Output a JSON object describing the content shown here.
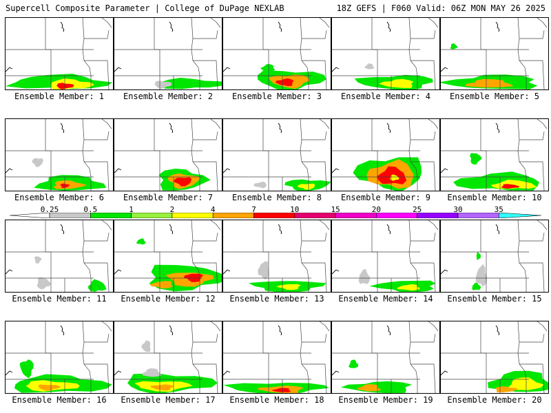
{
  "header": {
    "title": "Supercell Composite Parameter | College of DuPage NEXLAB",
    "run_info": "18Z GEFS | F060 Valid: 06Z MON MAY 26 2025"
  },
  "label_prefix": "Ensemble Member: ",
  "members": [
    {
      "label": "Ensemble Member: 1",
      "blobs": [
        [
          0.5,
          0.9,
          0.45,
          0.1,
          "#00e600"
        ],
        [
          0.6,
          0.93,
          0.2,
          0.07,
          "#ffff00"
        ],
        [
          0.55,
          0.95,
          0.08,
          0.04,
          "#ff0000"
        ]
      ]
    },
    {
      "label": "Ensemble Member: 2",
      "blobs": [
        [
          0.7,
          0.92,
          0.3,
          0.07,
          "#00e600"
        ],
        [
          0.45,
          0.93,
          0.08,
          0.05,
          "#c8c8c8"
        ]
      ]
    },
    {
      "label": "Ensemble Member: 3",
      "blobs": [
        [
          0.62,
          0.86,
          0.32,
          0.13,
          "#00e600"
        ],
        [
          0.62,
          0.88,
          0.18,
          0.09,
          "#ffa500"
        ],
        [
          0.58,
          0.9,
          0.08,
          0.05,
          "#ff0000"
        ],
        [
          0.42,
          0.7,
          0.06,
          0.05,
          "#00e600"
        ]
      ]
    },
    {
      "label": "Ensemble Member: 4",
      "blobs": [
        [
          0.6,
          0.9,
          0.35,
          0.1,
          "#00e600"
        ],
        [
          0.62,
          0.92,
          0.15,
          0.06,
          "#ffff00"
        ],
        [
          0.35,
          0.68,
          0.04,
          0.04,
          "#c8c8c8"
        ]
      ]
    },
    {
      "label": "Ensemble Member: 5",
      "blobs": [
        [
          0.5,
          0.9,
          0.42,
          0.1,
          "#00e600"
        ],
        [
          0.45,
          0.92,
          0.2,
          0.06,
          "#ffa500"
        ],
        [
          0.12,
          0.4,
          0.03,
          0.04,
          "#00e600"
        ]
      ]
    },
    {
      "label": "Ensemble Member: 6",
      "blobs": [
        [
          0.6,
          0.9,
          0.3,
          0.11,
          "#00e600"
        ],
        [
          0.58,
          0.92,
          0.14,
          0.06,
          "#ffa500"
        ],
        [
          0.55,
          0.93,
          0.04,
          0.03,
          "#ff0000"
        ],
        [
          0.3,
          0.6,
          0.05,
          0.06,
          "#c8c8c8"
        ]
      ]
    },
    {
      "label": "Ensemble Member: 7",
      "blobs": [
        [
          0.62,
          0.85,
          0.22,
          0.15,
          "#00e600"
        ],
        [
          0.64,
          0.86,
          0.14,
          0.1,
          "#ffa500"
        ],
        [
          0.64,
          0.87,
          0.08,
          0.06,
          "#ff0000"
        ]
      ]
    },
    {
      "label": "Ensemble Member: 8",
      "blobs": [
        [
          0.78,
          0.92,
          0.2,
          0.08,
          "#00e600"
        ],
        [
          0.78,
          0.94,
          0.08,
          0.04,
          "#ffff00"
        ],
        [
          0.35,
          0.92,
          0.06,
          0.04,
          "#c8c8c8"
        ]
      ]
    },
    {
      "label": "Ensemble Member: 9",
      "blobs": [
        [
          0.55,
          0.75,
          0.32,
          0.22,
          "#00e600"
        ],
        [
          0.56,
          0.78,
          0.22,
          0.18,
          "#ffa500"
        ],
        [
          0.56,
          0.8,
          0.13,
          0.12,
          "#ff0000"
        ],
        [
          0.58,
          0.82,
          0.04,
          0.04,
          "#ffff00"
        ]
      ]
    },
    {
      "label": "Ensemble Member: 10",
      "blobs": [
        [
          0.55,
          0.88,
          0.4,
          0.12,
          "#00e600"
        ],
        [
          0.68,
          0.92,
          0.2,
          0.06,
          "#ffff00"
        ],
        [
          0.64,
          0.94,
          0.08,
          0.03,
          "#ff0000"
        ],
        [
          0.32,
          0.55,
          0.05,
          0.08,
          "#00e600"
        ]
      ]
    },
    {
      "label": "Ensemble Member: 11",
      "blobs": [
        [
          0.85,
          0.92,
          0.08,
          0.08,
          "#00e600"
        ],
        [
          0.35,
          0.88,
          0.06,
          0.08,
          "#c8c8c8"
        ],
        [
          0.3,
          0.55,
          0.03,
          0.05,
          "#c8c8c8"
        ]
      ]
    },
    {
      "label": "Ensemble Member: 12",
      "blobs": [
        [
          0.65,
          0.8,
          0.35,
          0.18,
          "#00e600"
        ],
        [
          0.7,
          0.82,
          0.2,
          0.1,
          "#ffa500"
        ],
        [
          0.74,
          0.8,
          0.08,
          0.06,
          "#ff0000"
        ],
        [
          0.45,
          0.9,
          0.1,
          0.05,
          "#ffa500"
        ],
        [
          0.25,
          0.3,
          0.04,
          0.04,
          "#00e600"
        ]
      ]
    },
    {
      "label": "Ensemble Member: 13",
      "blobs": [
        [
          0.6,
          0.92,
          0.32,
          0.08,
          "#00e600"
        ],
        [
          0.62,
          0.93,
          0.1,
          0.04,
          "#ffff00"
        ],
        [
          0.38,
          0.7,
          0.05,
          0.12,
          "#c8c8c8"
        ]
      ]
    },
    {
      "label": "Ensemble Member: 14",
      "blobs": [
        [
          0.7,
          0.92,
          0.28,
          0.08,
          "#00e600"
        ],
        [
          0.72,
          0.94,
          0.1,
          0.04,
          "#ffff00"
        ],
        [
          0.3,
          0.8,
          0.05,
          0.1,
          "#c8c8c8"
        ]
      ]
    },
    {
      "label": "Ensemble Member: 15",
      "blobs": [
        [
          0.38,
          0.78,
          0.05,
          0.14,
          "#c8c8c8"
        ],
        [
          0.33,
          0.93,
          0.04,
          0.05,
          "#00e600"
        ],
        [
          0.35,
          0.5,
          0.02,
          0.05,
          "#00e600"
        ]
      ]
    },
    {
      "label": "Ensemble Member: 16",
      "blobs": [
        [
          0.5,
          0.88,
          0.45,
          0.12,
          "#00e600"
        ],
        [
          0.42,
          0.9,
          0.25,
          0.07,
          "#ffff00"
        ],
        [
          0.4,
          0.92,
          0.1,
          0.04,
          "#ffa500"
        ],
        [
          0.2,
          0.65,
          0.06,
          0.12,
          "#00e600"
        ]
      ]
    },
    {
      "label": "Ensemble Member: 17",
      "blobs": [
        [
          0.5,
          0.86,
          0.42,
          0.13,
          "#00e600"
        ],
        [
          0.45,
          0.9,
          0.25,
          0.07,
          "#ffff00"
        ],
        [
          0.45,
          0.92,
          0.1,
          0.04,
          "#ffa500"
        ],
        [
          0.3,
          0.35,
          0.04,
          0.08,
          "#c8c8c8"
        ],
        [
          0.35,
          0.72,
          0.08,
          0.06,
          "#c8c8c8"
        ]
      ]
    },
    {
      "label": "Ensemble Member: 18",
      "blobs": [
        [
          0.5,
          0.93,
          0.45,
          0.08,
          "#00e600"
        ],
        [
          0.55,
          0.95,
          0.2,
          0.05,
          "#ffa500"
        ],
        [
          0.55,
          0.96,
          0.08,
          0.03,
          "#ff0000"
        ]
      ]
    },
    {
      "label": "Ensemble Member: 19",
      "blobs": [
        [
          0.45,
          0.92,
          0.3,
          0.08,
          "#00e600"
        ],
        [
          0.35,
          0.93,
          0.1,
          0.05,
          "#ffa500"
        ],
        [
          0.2,
          0.6,
          0.04,
          0.06,
          "#00e600"
        ]
      ]
    },
    {
      "label": "Ensemble Member: 20",
      "blobs": [
        [
          0.75,
          0.85,
          0.28,
          0.15,
          "#00e600"
        ],
        [
          0.78,
          0.88,
          0.15,
          0.09,
          "#ffff00"
        ],
        [
          0.6,
          0.95,
          0.1,
          0.04,
          "#ffa500"
        ]
      ]
    }
  ],
  "legend": {
    "colors": [
      "#ffffff",
      "#c8c8c8",
      "#00e600",
      "#98f03c",
      "#ffff00",
      "#ffa500",
      "#ff0000",
      "#e6006e",
      "#f000c8",
      "#ff00ff",
      "#9600ff",
      "#b464ff",
      "#32ffff"
    ],
    "labels": [
      "0.25",
      "0.5",
      "1",
      "2",
      "4",
      "7",
      "10",
      "15",
      "20",
      "25",
      "30",
      "35"
    ]
  }
}
